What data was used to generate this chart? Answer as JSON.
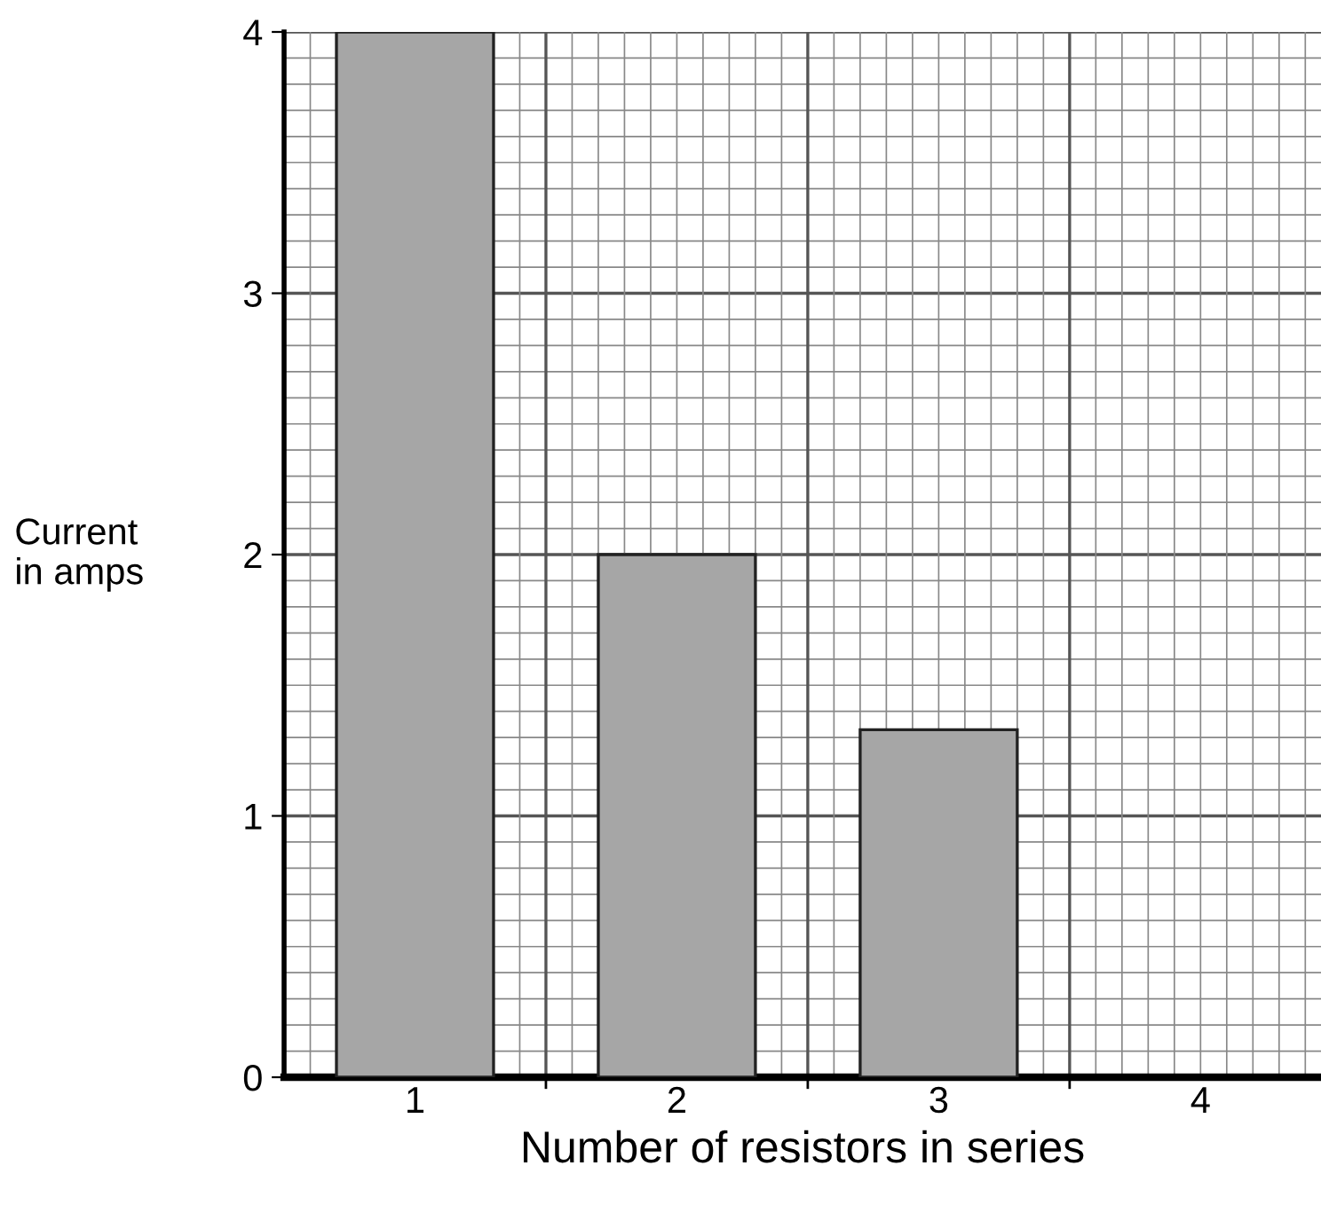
{
  "chart_data": {
    "type": "bar",
    "xlabel": "Number of resistors in series",
    "ylabel": "Current\nin amps",
    "categories": [
      "1",
      "2",
      "3",
      "4"
    ],
    "values": [
      4,
      2,
      1.33,
      null
    ],
    "color": "#a6a6a6",
    "ylim": [
      0,
      4
    ],
    "yticks": [
      0,
      1,
      2,
      3,
      4
    ],
    "grid": true
  }
}
